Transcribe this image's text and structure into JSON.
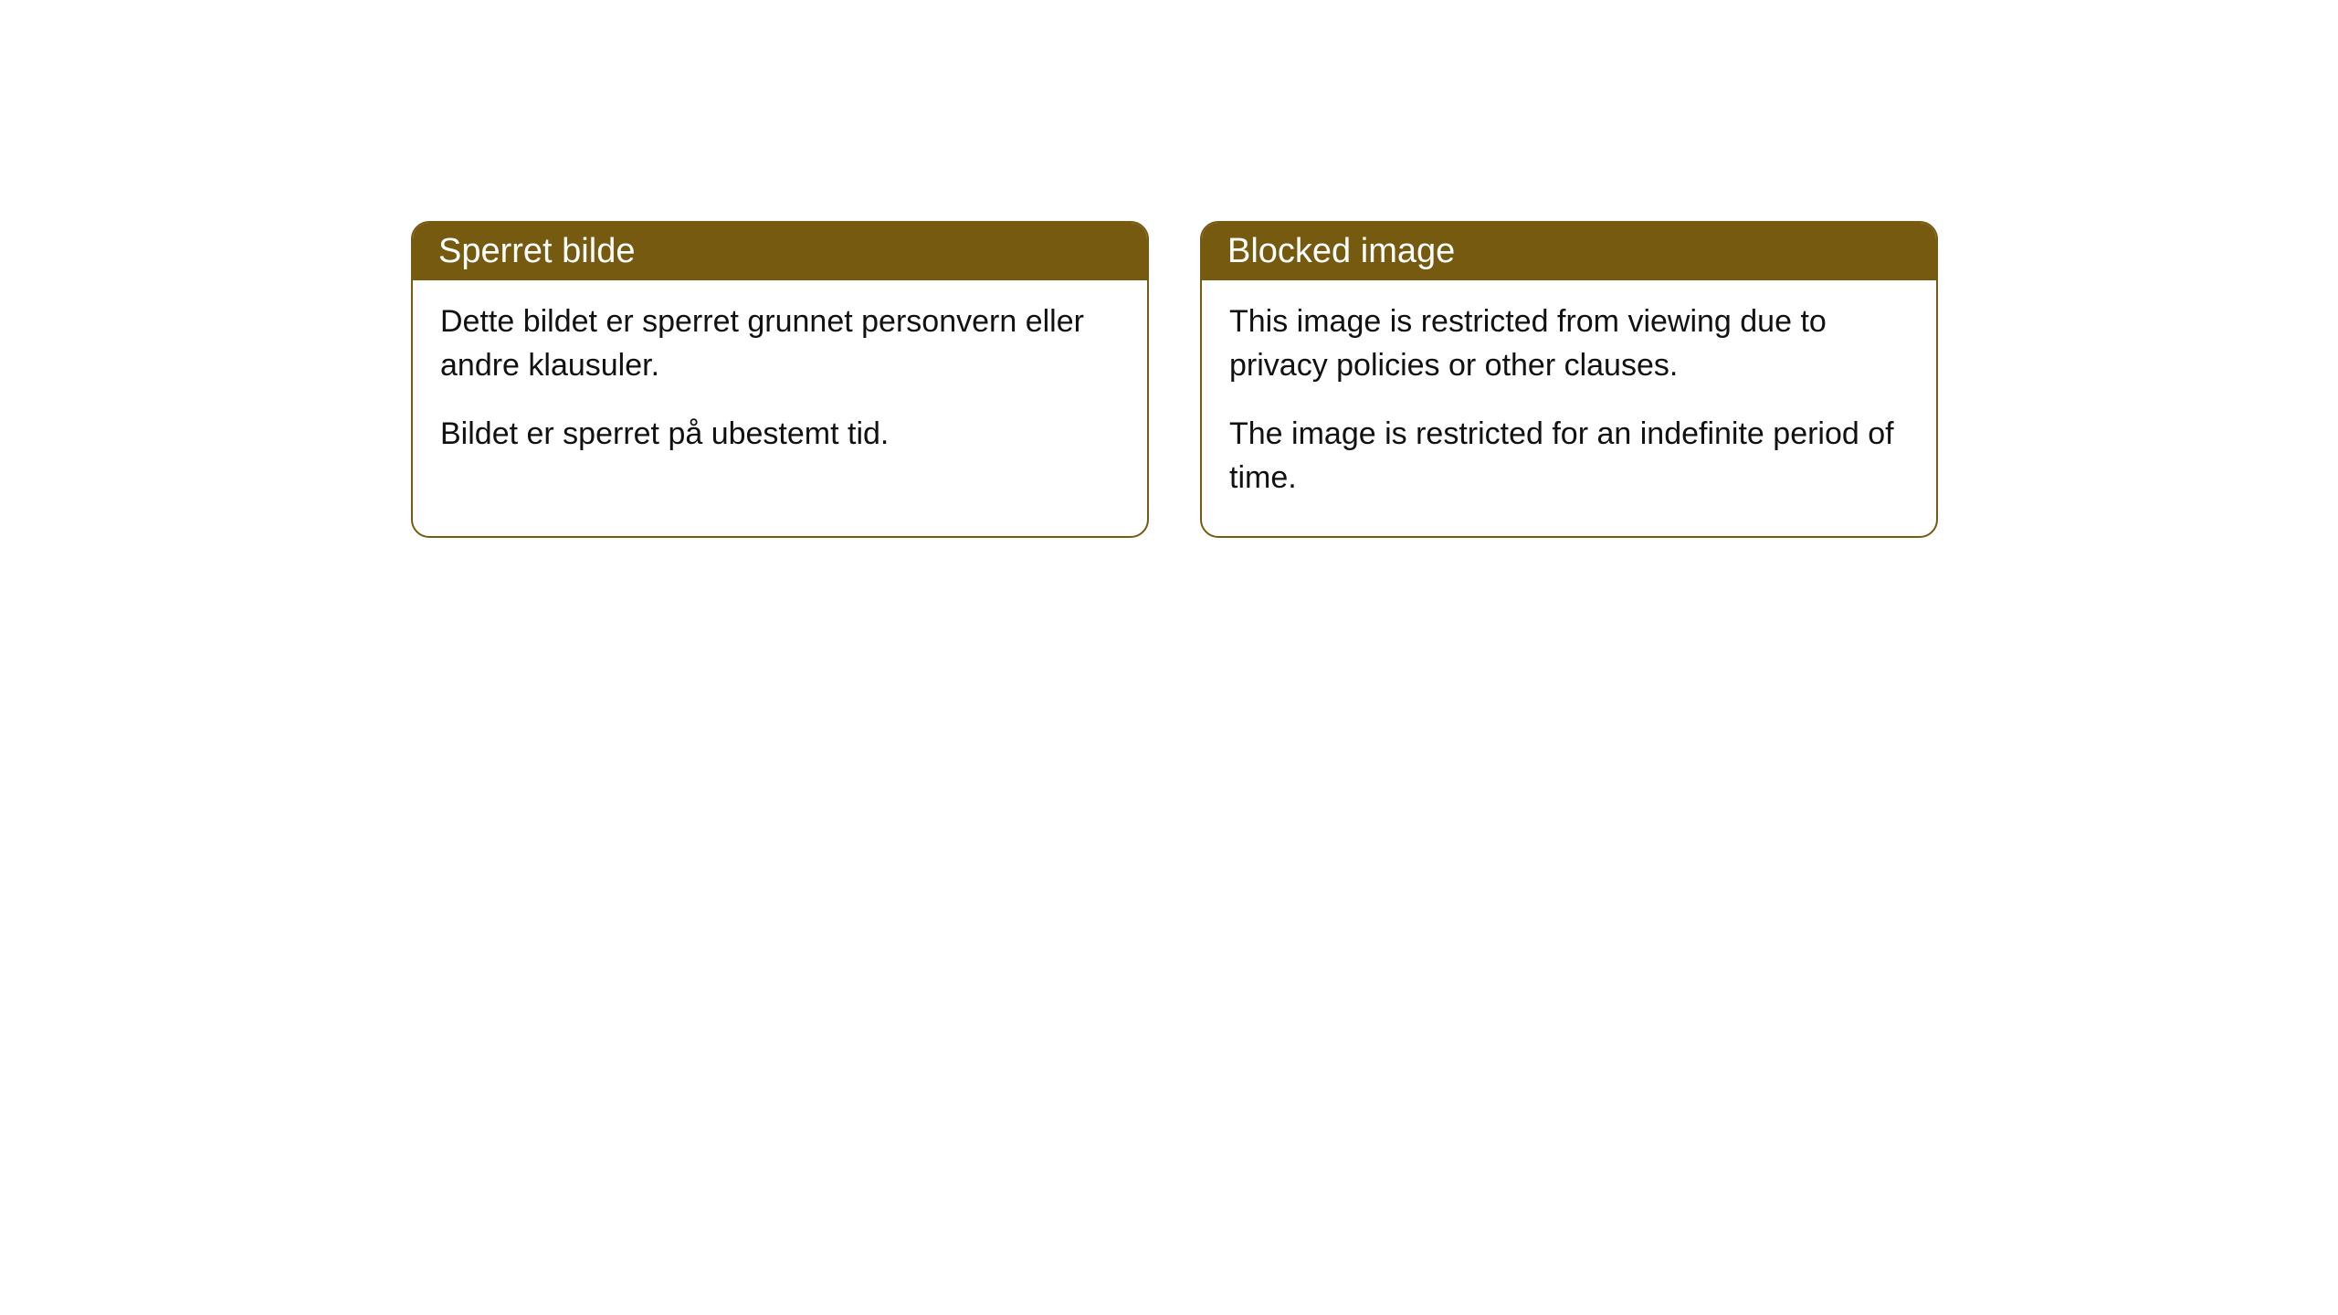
{
  "cards": [
    {
      "title": "Sperret bilde",
      "paragraph1": "Dette bildet er sperret grunnet personvern eller andre klausuler.",
      "paragraph2": "Bildet er sperret på ubestemt tid."
    },
    {
      "title": "Blocked image",
      "paragraph1": "This image is restricted from viewing due to privacy policies or other clauses.",
      "paragraph2": "The image is restricted for an indefinite period of time."
    }
  ],
  "style": {
    "header_bg_color": "#755a10",
    "header_text_color": "#ffffff",
    "border_color": "#755a10",
    "body_bg_color": "#ffffff",
    "body_text_color": "#111111",
    "border_radius": 20,
    "header_fontsize": 38,
    "body_fontsize": 34
  }
}
